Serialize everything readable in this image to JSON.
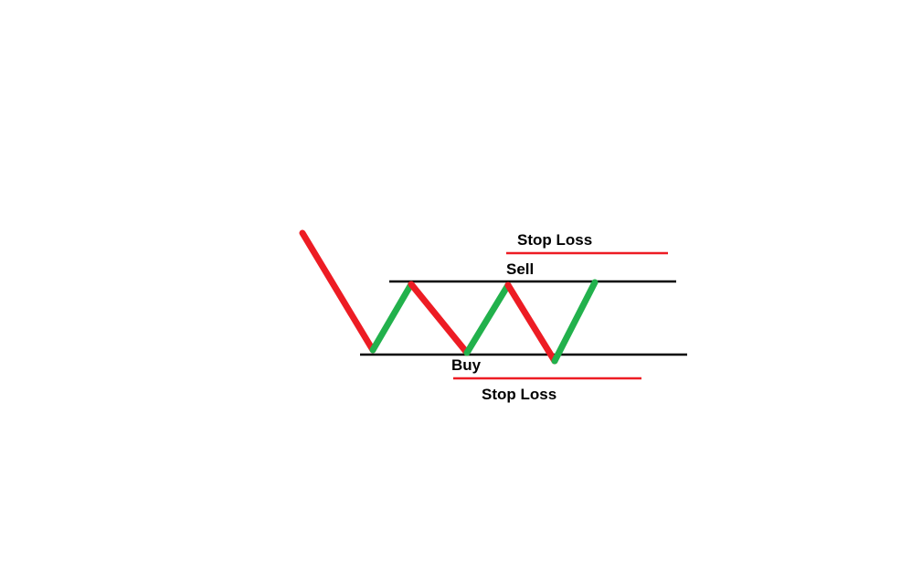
{
  "labels": {
    "stop_loss_top": "Stop Loss",
    "sell": "Sell",
    "buy": "Buy",
    "stop_loss_bottom": "Stop Loss"
  },
  "colors": {
    "up_leg": "#22b14c",
    "down_leg": "#ed1c24",
    "level_line": "#000000",
    "stop_loss_line": "#ed1c24",
    "background": "#ffffff"
  }
}
